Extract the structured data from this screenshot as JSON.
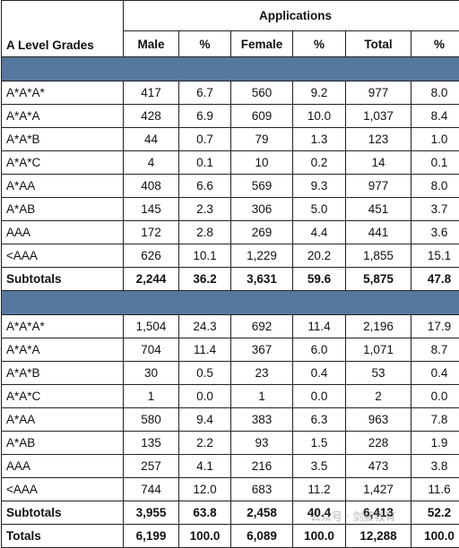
{
  "header": {
    "grades_label": "A Level Grades",
    "applications_label": "Applications",
    "columns": [
      "Male",
      "%",
      "Female",
      "%",
      "Total",
      "%"
    ]
  },
  "section1": {
    "rows": [
      {
        "grade": "A*A*A*",
        "male": "417",
        "male_pct": "6.7",
        "female": "560",
        "female_pct": "9.2",
        "total": "977",
        "total_pct": "8.0"
      },
      {
        "grade": "A*A*A",
        "male": "428",
        "male_pct": "6.9",
        "female": "609",
        "female_pct": "10.0",
        "total": "1,037",
        "total_pct": "8.4"
      },
      {
        "grade": "A*A*B",
        "male": "44",
        "male_pct": "0.7",
        "female": "79",
        "female_pct": "1.3",
        "total": "123",
        "total_pct": "1.0"
      },
      {
        "grade": "A*A*C",
        "male": "4",
        "male_pct": "0.1",
        "female": "10",
        "female_pct": "0.2",
        "total": "14",
        "total_pct": "0.1"
      },
      {
        "grade": "A*AA",
        "male": "408",
        "male_pct": "6.6",
        "female": "569",
        "female_pct": "9.3",
        "total": "977",
        "total_pct": "8.0"
      },
      {
        "grade": "A*AB",
        "male": "145",
        "male_pct": "2.3",
        "female": "306",
        "female_pct": "5.0",
        "total": "451",
        "total_pct": "3.7"
      },
      {
        "grade": "AAA",
        "male": "172",
        "male_pct": "2.8",
        "female": "269",
        "female_pct": "4.4",
        "total": "441",
        "total_pct": "3.6"
      },
      {
        "grade": "<AAA",
        "male": "626",
        "male_pct": "10.1",
        "female": "1,229",
        "female_pct": "20.2",
        "total": "1,855",
        "total_pct": "15.1"
      }
    ],
    "subtotal": {
      "grade": "Subtotals",
      "male": "2,244",
      "male_pct": "36.2",
      "female": "3,631",
      "female_pct": "59.6",
      "total": "5,875",
      "total_pct": "47.8"
    }
  },
  "section2": {
    "rows": [
      {
        "grade": "A*A*A*",
        "male": "1,504",
        "male_pct": "24.3",
        "female": "692",
        "female_pct": "11.4",
        "total": "2,196",
        "total_pct": "17.9"
      },
      {
        "grade": "A*A*A",
        "male": "704",
        "male_pct": "11.4",
        "female": "367",
        "female_pct": "6.0",
        "total": "1,071",
        "total_pct": "8.7"
      },
      {
        "grade": "A*A*B",
        "male": "30",
        "male_pct": "0.5",
        "female": "23",
        "female_pct": "0.4",
        "total": "53",
        "total_pct": "0.4"
      },
      {
        "grade": "A*A*C",
        "male": "1",
        "male_pct": "0.0",
        "female": "1",
        "female_pct": "0.0",
        "total": "2",
        "total_pct": "0.0"
      },
      {
        "grade": "A*AA",
        "male": "580",
        "male_pct": "9.4",
        "female": "383",
        "female_pct": "6.3",
        "total": "963",
        "total_pct": "7.8"
      },
      {
        "grade": "A*AB",
        "male": "135",
        "male_pct": "2.2",
        "female": "93",
        "female_pct": "1.5",
        "total": "228",
        "total_pct": "1.9"
      },
      {
        "grade": "AAA",
        "male": "257",
        "male_pct": "4.1",
        "female": "216",
        "female_pct": "3.5",
        "total": "473",
        "total_pct": "3.8"
      },
      {
        "grade": "<AAA",
        "male": "744",
        "male_pct": "12.0",
        "female": "683",
        "female_pct": "11.2",
        "total": "1,427",
        "total_pct": "11.6"
      }
    ],
    "subtotal": {
      "grade": "Subtotals",
      "male": "3,955",
      "male_pct": "63.8",
      "female": "2,458",
      "female_pct": "40.4",
      "total": "6,413",
      "total_pct": "52.2"
    }
  },
  "totals": {
    "grade": "Totals",
    "male": "6,199",
    "male_pct": "100.0",
    "female": "6,089",
    "female_pct": "100.0",
    "total": "12,288",
    "total_pct": "100.0"
  },
  "watermark": "公众号 · 剑藤教育",
  "colors": {
    "section_band": "#57789e",
    "border": "#222222"
  }
}
